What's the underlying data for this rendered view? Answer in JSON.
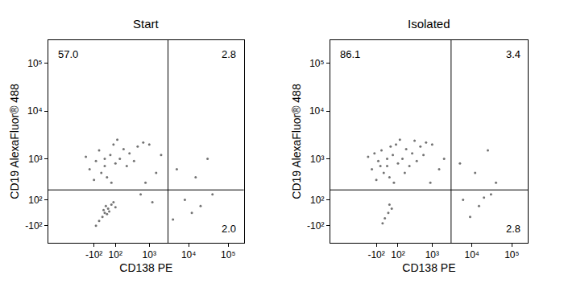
{
  "chart_data": [
    {
      "type": "scatter",
      "title": "Start",
      "x_label": "CD138 PE",
      "y_label": "CD19 AlexaFluor® 488",
      "color": "#000000",
      "x": [
        -150,
        -80,
        0,
        50,
        100,
        -50,
        20,
        150,
        200,
        -100,
        80,
        300,
        500,
        0,
        -30,
        250,
        120,
        700,
        1000,
        -200,
        60,
        400,
        -50,
        0,
        30,
        60,
        -20,
        40,
        10,
        80,
        -80,
        20,
        100,
        -10,
        1500,
        800,
        2000,
        600,
        1200,
        5000,
        15000,
        30000,
        8000,
        20000,
        40000,
        4000,
        12000
      ],
      "y": [
        600,
        900,
        700,
        1200,
        800,
        1500,
        400,
        1000,
        1600,
        350,
        2000,
        1300,
        1800,
        1000,
        500,
        700,
        2500,
        2200,
        2000,
        1100,
        300,
        900,
        -60,
        0,
        30,
        60,
        -30,
        10,
        50,
        80,
        -100,
        -10,
        40,
        20,
        500,
        300,
        1200,
        150,
        80,
        600,
        400,
        1000,
        100,
        50,
        150,
        -50,
        0
      ],
      "xlim": [
        -2000,
        250000
      ],
      "ylim": [
        -300,
        300000
      ],
      "xticks": [
        {
          "value": -100,
          "label": "-10²"
        },
        {
          "value": 100,
          "label": "10²"
        },
        {
          "value": 1000,
          "label": "10³"
        },
        {
          "value": 10000,
          "label": "10⁴"
        },
        {
          "value": 100000,
          "label": "10⁵"
        }
      ],
      "yticks": [
        {
          "value": -100,
          "label": "-10²"
        },
        {
          "value": 100,
          "label": "10²"
        },
        {
          "value": 1000,
          "label": "10³"
        },
        {
          "value": 10000,
          "label": "10⁴"
        },
        {
          "value": 100000,
          "label": "10⁵"
        }
      ],
      "gates": {
        "x": 3000,
        "y": 200
      },
      "quadrants": {
        "upper_left": {
          "value": 57.0,
          "label": "57.0"
        },
        "upper_right": {
          "value": 2.8,
          "label": "2.8"
        },
        "lower_right": {
          "value": 2.0,
          "label": "2.0"
        }
      }
    },
    {
      "type": "scatter",
      "title": "Isolated",
      "x_label": "CD138 PE",
      "y_label": "CD19 AlexaFluor® 488",
      "color": "#000000",
      "x": [
        -150,
        -80,
        0,
        50,
        100,
        -50,
        20,
        150,
        200,
        -100,
        80,
        300,
        500,
        0,
        -30,
        250,
        120,
        700,
        1000,
        -200,
        60,
        400,
        -120,
        30,
        180,
        350,
        600,
        -60,
        -20,
        10,
        40,
        -40,
        20,
        1500,
        900,
        2000,
        5000,
        12000,
        25000,
        40000,
        6000,
        15000,
        30000,
        9000,
        20000
      ],
      "y": [
        600,
        900,
        700,
        1200,
        800,
        1500,
        400,
        1000,
        1600,
        350,
        2000,
        1300,
        1800,
        1000,
        500,
        700,
        2500,
        2200,
        2000,
        1100,
        300,
        900,
        1300,
        1800,
        500,
        2400,
        1200,
        700,
        -40,
        0,
        30,
        -80,
        60,
        600,
        300,
        1000,
        800,
        500,
        1500,
        300,
        100,
        50,
        150,
        -30,
        120
      ],
      "xlim": [
        -2000,
        250000
      ],
      "ylim": [
        -300,
        300000
      ],
      "xticks": [
        {
          "value": -100,
          "label": "-10²"
        },
        {
          "value": 100,
          "label": "10²"
        },
        {
          "value": 1000,
          "label": "10³"
        },
        {
          "value": 10000,
          "label": "10⁴"
        },
        {
          "value": 100000,
          "label": "10⁵"
        }
      ],
      "yticks": [
        {
          "value": -100,
          "label": "-10²"
        },
        {
          "value": 100,
          "label": "10²"
        },
        {
          "value": 1000,
          "label": "10³"
        },
        {
          "value": 10000,
          "label": "10⁴"
        },
        {
          "value": 100000,
          "label": "10⁵"
        }
      ],
      "gates": {
        "x": 3000,
        "y": 200
      },
      "quadrants": {
        "upper_left": {
          "value": 86.1,
          "label": "86.1"
        },
        "upper_right": {
          "value": 3.4,
          "label": "3.4"
        },
        "lower_right": {
          "value": 2.8,
          "label": "2.8"
        }
      }
    }
  ]
}
